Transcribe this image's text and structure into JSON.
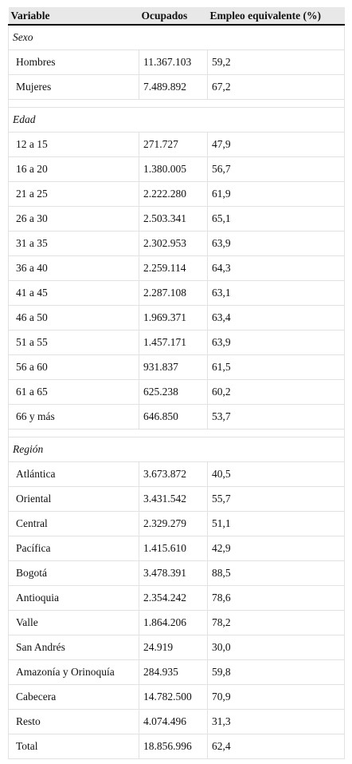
{
  "header": {
    "columns": [
      "Variable",
      "Ocupados",
      "Empleo equivalente (%)"
    ]
  },
  "sections": [
    {
      "title": "Sexo",
      "rows": [
        [
          "Hombres",
          "11.367.103",
          "59,2"
        ],
        [
          "Mujeres",
          "7.489.892",
          "67,2"
        ]
      ]
    },
    {
      "title": "Edad",
      "rows": [
        [
          "12 a 15",
          "271.727",
          "47,9"
        ],
        [
          "16 a 20",
          "1.380.005",
          "56,7"
        ],
        [
          "21 a 25",
          "2.222.280",
          "61,9"
        ],
        [
          "26 a 30",
          "2.503.341",
          "65,1"
        ],
        [
          "31 a 35",
          "2.302.953",
          "63,9"
        ],
        [
          "36 a 40",
          "2.259.114",
          "64,3"
        ],
        [
          "41 a 45",
          "2.287.108",
          "63,1"
        ],
        [
          "46 a 50",
          "1.969.371",
          "63,4"
        ],
        [
          "51 a 55",
          "1.457.171",
          "63,9"
        ],
        [
          "56 a 60",
          "931.837",
          "61,5"
        ],
        [
          "61 a 65",
          "625.238",
          "60,2"
        ],
        [
          "66 y más",
          "646.850",
          "53,7"
        ]
      ]
    },
    {
      "title": "Región",
      "rows": [
        [
          "Atlántica",
          "3.673.872",
          "40,5"
        ],
        [
          "Oriental",
          "3.431.542",
          "55,7"
        ],
        [
          "Central",
          "2.329.279",
          "51,1"
        ],
        [
          "Pacífica",
          "1.415.610",
          "42,9"
        ],
        [
          "Bogotá",
          "3.478.391",
          "88,5"
        ],
        [
          "Antioquia",
          "2.354.242",
          "78,6"
        ],
        [
          "Valle",
          "1.864.206",
          "78,2"
        ],
        [
          "San Andrés",
          "24.919",
          "30,0"
        ],
        [
          "Amazonía y Orinoquía",
          "284.935",
          "59,8"
        ],
        [
          "Cabecera",
          "14.782.500",
          "70,9"
        ],
        [
          "Resto",
          "4.074.496",
          "31,3"
        ],
        [
          "Total",
          "18.856.996",
          "62,4"
        ]
      ]
    }
  ]
}
